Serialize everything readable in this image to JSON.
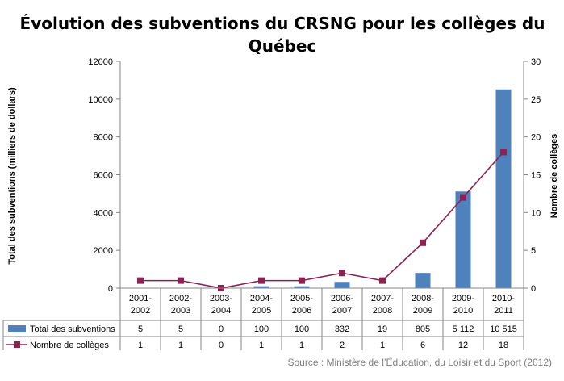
{
  "chart_data": {
    "type": "bar",
    "title": "Évolution des subventions du CRSNG pour les collèges du",
    "title_line2": "Québec",
    "categories": [
      [
        "2001-",
        "2002"
      ],
      [
        "2002-",
        "2003"
      ],
      [
        "2003-",
        "2004"
      ],
      [
        "2004-",
        "2005"
      ],
      [
        "2005-",
        "2006"
      ],
      [
        "2006-",
        "2007"
      ],
      [
        "2007-",
        "2008"
      ],
      [
        "2008-",
        "2009"
      ],
      [
        "2009-",
        "2010"
      ],
      [
        "2010-",
        "2011"
      ]
    ],
    "series": [
      {
        "name": "Total des subventions",
        "kind": "bar",
        "axis": "left",
        "color": "#4f81bd",
        "values": [
          5,
          5,
          0,
          100,
          100,
          332,
          19,
          805,
          5112,
          10515
        ],
        "table_labels": [
          "5",
          "5",
          "0",
          "100",
          "100",
          "332",
          "19",
          "805",
          "5 112",
          "10 515"
        ]
      },
      {
        "name": "Nombre de collèges",
        "kind": "line",
        "axis": "right",
        "color": "#8b2252",
        "values": [
          1,
          1,
          0,
          1,
          1,
          2,
          1,
          6,
          12,
          18
        ],
        "table_labels": [
          "1",
          "1",
          "0",
          "1",
          "1",
          "2",
          "1",
          "6",
          "12",
          "18"
        ]
      }
    ],
    "y_left": {
      "label": "Total des subventions (milliers de dollars)",
      "min": 0,
      "max": 12000,
      "step": 2000
    },
    "y_right": {
      "label": "Nombre de collèges",
      "min": 0,
      "max": 30,
      "step": 5
    },
    "grid": false,
    "legend": "data-table-below",
    "source": "Source : Ministère de l’Éducation, du Loisir et du Sport (2012)"
  }
}
